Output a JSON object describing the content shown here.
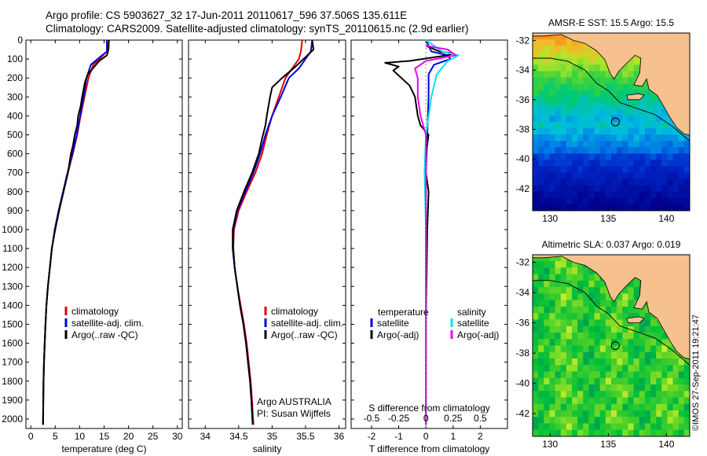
{
  "header": {
    "line1": "Argo profile: CS 5903627_32 17-Jun-2011 20110617_596 37.506S 135.611E",
    "line2": "Climatology: CARS2009. Satellite-adjusted climatology: synTS_20110615.nc (2.9d earlier)"
  },
  "stamp": "©IMOS 27-Sep-2011 19:21:47",
  "colors": {
    "climatology": "#e00000",
    "satellite": "#0000dd",
    "argo": "#000000",
    "cyan": "#00e5e5",
    "magenta": "#ee00ee",
    "land": "#f6c08f"
  },
  "chart_data": [
    {
      "type": "line",
      "panel": "temperature",
      "xlabel": "temperature (deg C)",
      "ylabel": "",
      "xlim": [
        -1,
        31
      ],
      "ylim": [
        2050,
        0
      ],
      "xticks": [
        0,
        5,
        10,
        15,
        20,
        25,
        30
      ],
      "yticks": [
        0,
        100,
        200,
        300,
        400,
        500,
        600,
        700,
        800,
        900,
        1000,
        1100,
        1200,
        1300,
        1400,
        1500,
        1600,
        1700,
        1800,
        1900,
        2000
      ],
      "legend": [
        "climatology",
        "satellite-adj. clim.",
        "Argo(..raw -QC)"
      ],
      "series": [
        {
          "name": "climatology",
          "color": "#e00000",
          "points": [
            [
              15.6,
              0
            ],
            [
              15.6,
              60
            ],
            [
              14.8,
              80
            ],
            [
              12.8,
              130
            ],
            [
              11.8,
              200
            ],
            [
              11.0,
              300
            ],
            [
              10.2,
              400
            ],
            [
              9.5,
              500
            ],
            [
              8.6,
              600
            ],
            [
              7.6,
              700
            ],
            [
              6.6,
              800
            ],
            [
              5.7,
              900
            ],
            [
              4.9,
              1000
            ],
            [
              4.3,
              1100
            ],
            [
              3.9,
              1200
            ],
            [
              3.5,
              1300
            ],
            [
              3.2,
              1400
            ],
            [
              3.0,
              1500
            ],
            [
              2.85,
              1600
            ],
            [
              2.7,
              1700
            ],
            [
              2.6,
              1800
            ],
            [
              2.55,
              1900
            ],
            [
              2.5,
              2030
            ]
          ]
        },
        {
          "name": "satellite-adj. clim.",
          "color": "#0000dd",
          "points": [
            [
              15.6,
              0
            ],
            [
              15.6,
              60
            ],
            [
              14.6,
              80
            ],
            [
              12.3,
              130
            ],
            [
              11.4,
              200
            ],
            [
              10.8,
              300
            ],
            [
              10.1,
              400
            ],
            [
              9.4,
              500
            ],
            [
              8.5,
              600
            ],
            [
              7.5,
              700
            ],
            [
              6.6,
              800
            ],
            [
              5.7,
              900
            ],
            [
              4.9,
              1000
            ],
            [
              4.3,
              1100
            ],
            [
              3.9,
              1200
            ],
            [
              3.5,
              1300
            ],
            [
              3.2,
              1400
            ],
            [
              3.0,
              1500
            ],
            [
              2.85,
              1600
            ],
            [
              2.7,
              1700
            ],
            [
              2.6,
              1800
            ],
            [
              2.55,
              1900
            ],
            [
              2.5,
              2030
            ]
          ]
        },
        {
          "name": "Argo(..raw -QC)",
          "color": "#000000",
          "points": [
            [
              16.0,
              0
            ],
            [
              15.9,
              50
            ],
            [
              15.6,
              80
            ],
            [
              14.0,
              110
            ],
            [
              13.0,
              140
            ],
            [
              11.7,
              180
            ],
            [
              11.1,
              220
            ],
            [
              10.8,
              260
            ],
            [
              10.5,
              300
            ],
            [
              10.2,
              350
            ],
            [
              9.7,
              400
            ],
            [
              9.5,
              450
            ],
            [
              9.0,
              500
            ],
            [
              8.6,
              560
            ],
            [
              8.2,
              600
            ],
            [
              7.6,
              700
            ],
            [
              6.7,
              800
            ],
            [
              5.8,
              900
            ],
            [
              5.0,
              1000
            ],
            [
              4.3,
              1100
            ],
            [
              3.9,
              1200
            ],
            [
              3.5,
              1300
            ],
            [
              3.2,
              1400
            ],
            [
              3.0,
              1500
            ],
            [
              2.85,
              1600
            ],
            [
              2.7,
              1700
            ],
            [
              2.6,
              1800
            ],
            [
              2.55,
              1900
            ],
            [
              2.5,
              2030
            ]
          ]
        }
      ]
    },
    {
      "type": "line",
      "panel": "salinity",
      "xlabel": "salinity",
      "xlim": [
        33.75,
        36.1
      ],
      "ylim": [
        2050,
        0
      ],
      "xticks": [
        34,
        34.5,
        35,
        35.5,
        36
      ],
      "legend": [
        "climatology",
        "satellite-adj. clim.",
        "Argo(..raw -QC)"
      ],
      "annotation": [
        "Argo AUSTRALIA",
        "PI: Susan Wijffels"
      ],
      "series": [
        {
          "name": "climatology",
          "color": "#e00000",
          "points": [
            [
              35.45,
              0
            ],
            [
              35.43,
              60
            ],
            [
              35.4,
              100
            ],
            [
              35.3,
              150
            ],
            [
              35.2,
              200
            ],
            [
              35.1,
              300
            ],
            [
              35.0,
              400
            ],
            [
              34.92,
              500
            ],
            [
              34.85,
              600
            ],
            [
              34.75,
              700
            ],
            [
              34.62,
              800
            ],
            [
              34.5,
              900
            ],
            [
              34.43,
              1000
            ],
            [
              34.42,
              1100
            ],
            [
              34.44,
              1200
            ],
            [
              34.48,
              1300
            ],
            [
              34.53,
              1400
            ],
            [
              34.58,
              1500
            ],
            [
              34.62,
              1600
            ],
            [
              34.65,
              1700
            ],
            [
              34.68,
              1800
            ],
            [
              34.7,
              1900
            ],
            [
              34.72,
              2030
            ]
          ]
        },
        {
          "name": "satellite-adj. clim.",
          "color": "#0000dd",
          "points": [
            [
              35.6,
              0
            ],
            [
              35.58,
              60
            ],
            [
              35.5,
              100
            ],
            [
              35.4,
              150
            ],
            [
              35.25,
              200
            ],
            [
              35.13,
              300
            ],
            [
              35.0,
              400
            ],
            [
              34.9,
              500
            ],
            [
              34.82,
              600
            ],
            [
              34.72,
              700
            ],
            [
              34.6,
              800
            ],
            [
              34.48,
              900
            ],
            [
              34.42,
              1000
            ],
            [
              34.42,
              1100
            ],
            [
              34.44,
              1200
            ],
            [
              34.48,
              1300
            ],
            [
              34.52,
              1400
            ],
            [
              34.57,
              1500
            ],
            [
              34.61,
              1600
            ],
            [
              34.64,
              1700
            ],
            [
              34.67,
              1800
            ],
            [
              34.69,
              1900
            ],
            [
              34.71,
              2030
            ]
          ]
        },
        {
          "name": "Argo(..raw -QC)",
          "color": "#000000",
          "points": [
            [
              35.6,
              0
            ],
            [
              35.62,
              50
            ],
            [
              35.5,
              90
            ],
            [
              35.35,
              140
            ],
            [
              35.15,
              200
            ],
            [
              35.0,
              250
            ],
            [
              34.97,
              300
            ],
            [
              34.92,
              400
            ],
            [
              34.9,
              450
            ],
            [
              34.85,
              520
            ],
            [
              34.8,
              600
            ],
            [
              34.7,
              700
            ],
            [
              34.58,
              800
            ],
            [
              34.47,
              900
            ],
            [
              34.41,
              1000
            ],
            [
              34.41,
              1100
            ],
            [
              34.44,
              1200
            ],
            [
              34.48,
              1300
            ],
            [
              34.52,
              1400
            ],
            [
              34.57,
              1500
            ],
            [
              34.61,
              1600
            ],
            [
              34.64,
              1700
            ],
            [
              34.67,
              1800
            ],
            [
              34.69,
              1900
            ],
            [
              34.71,
              2030
            ]
          ]
        }
      ]
    },
    {
      "type": "line",
      "panel": "difference",
      "xlabel": "T difference from climatology",
      "xlabel_top": "S difference from climatology",
      "xlim": [
        -2.75,
        3.0
      ],
      "ylim": [
        2050,
        0
      ],
      "xticks": [
        -2,
        -1,
        0,
        1,
        2
      ],
      "xticks_top": [
        "-0.5",
        "-0.25",
        "0",
        "0.25",
        "0.5"
      ],
      "xticks_top_pos": [
        -2,
        -1,
        0,
        1,
        2
      ],
      "legend": [
        {
          "group": "temperature",
          "entries": [
            "satellite",
            "Argo(-adj)"
          ]
        },
        {
          "group": "salinity",
          "entries": [
            "satellite",
            "Argo(-adj)"
          ]
        }
      ],
      "series": [
        {
          "name": "temperature satellite",
          "color": "#0000dd",
          "points": [
            [
              0,
              0
            ],
            [
              0.2,
              60
            ],
            [
              0.8,
              80
            ],
            [
              0.9,
              100
            ],
            [
              0.3,
              130
            ],
            [
              0.1,
              180
            ],
            [
              0.1,
              300
            ],
            [
              0.05,
              500
            ],
            [
              0.0,
              700
            ],
            [
              0,
              1000
            ],
            [
              0,
              2030
            ]
          ]
        },
        {
          "name": "temperature Argo(-adj)",
          "color": "#000000",
          "points": [
            [
              0,
              30
            ],
            [
              0.5,
              60
            ],
            [
              1.0,
              70
            ],
            [
              0.8,
              80
            ],
            [
              -0.6,
              110
            ],
            [
              -1.5,
              120
            ],
            [
              -1.0,
              140
            ],
            [
              -1.2,
              160
            ],
            [
              -0.9,
              200
            ],
            [
              -0.6,
              240
            ],
            [
              -0.4,
              300
            ],
            [
              -0.3,
              400
            ],
            [
              -0.2,
              450
            ],
            [
              0.1,
              500
            ],
            [
              0.0,
              600
            ],
            [
              0.0,
              700
            ],
            [
              0.1,
              800
            ],
            [
              0.05,
              1000
            ],
            [
              0.0,
              1500
            ],
            [
              0.0,
              2030
            ]
          ]
        },
        {
          "name": "salinity satellite",
          "color": "#00e5e5",
          "points": [
            [
              0,
              0
            ],
            [
              0.6,
              60
            ],
            [
              1.2,
              80
            ],
            [
              0.8,
              110
            ],
            [
              0.4,
              180
            ],
            [
              0.2,
              300
            ],
            [
              0.0,
              500
            ],
            [
              -0.05,
              700
            ],
            [
              0.0,
              1000
            ],
            [
              0.0,
              2030
            ]
          ]
        },
        {
          "name": "salinity Argo(-adj)",
          "color": "#ee00ee",
          "points": [
            [
              0,
              30
            ],
            [
              0.8,
              50
            ],
            [
              1.1,
              80
            ],
            [
              0.0,
              110
            ],
            [
              -0.4,
              150
            ],
            [
              -0.3,
              200
            ],
            [
              -0.3,
              300
            ],
            [
              -0.2,
              400
            ],
            [
              0.0,
              500
            ],
            [
              0.0,
              700
            ],
            [
              0.0,
              1000
            ],
            [
              0.0,
              2030
            ]
          ]
        }
      ]
    },
    {
      "type": "heatmap",
      "panel": "map-sst",
      "title": "AMSR-E SST: 15.5 Argo: 15.5",
      "xlim": [
        128.5,
        142
      ],
      "ylim": [
        -43.5,
        -31.5
      ],
      "xticks": [
        130,
        135,
        140
      ],
      "yticks": [
        -32,
        -34,
        -36,
        -38,
        -40,
        -42
      ],
      "marker": [
        135.611,
        -37.506
      ]
    },
    {
      "type": "heatmap",
      "panel": "map-sla",
      "title": "Altimetric SLA: 0.037 Argo: 0.019",
      "xlim": [
        128.5,
        142
      ],
      "ylim": [
        -43.5,
        -31.5
      ],
      "xticks": [
        130,
        135,
        140
      ],
      "yticks": [
        -32,
        -34,
        -36,
        -38,
        -40,
        -42
      ],
      "marker": [
        135.611,
        -37.506
      ]
    }
  ]
}
